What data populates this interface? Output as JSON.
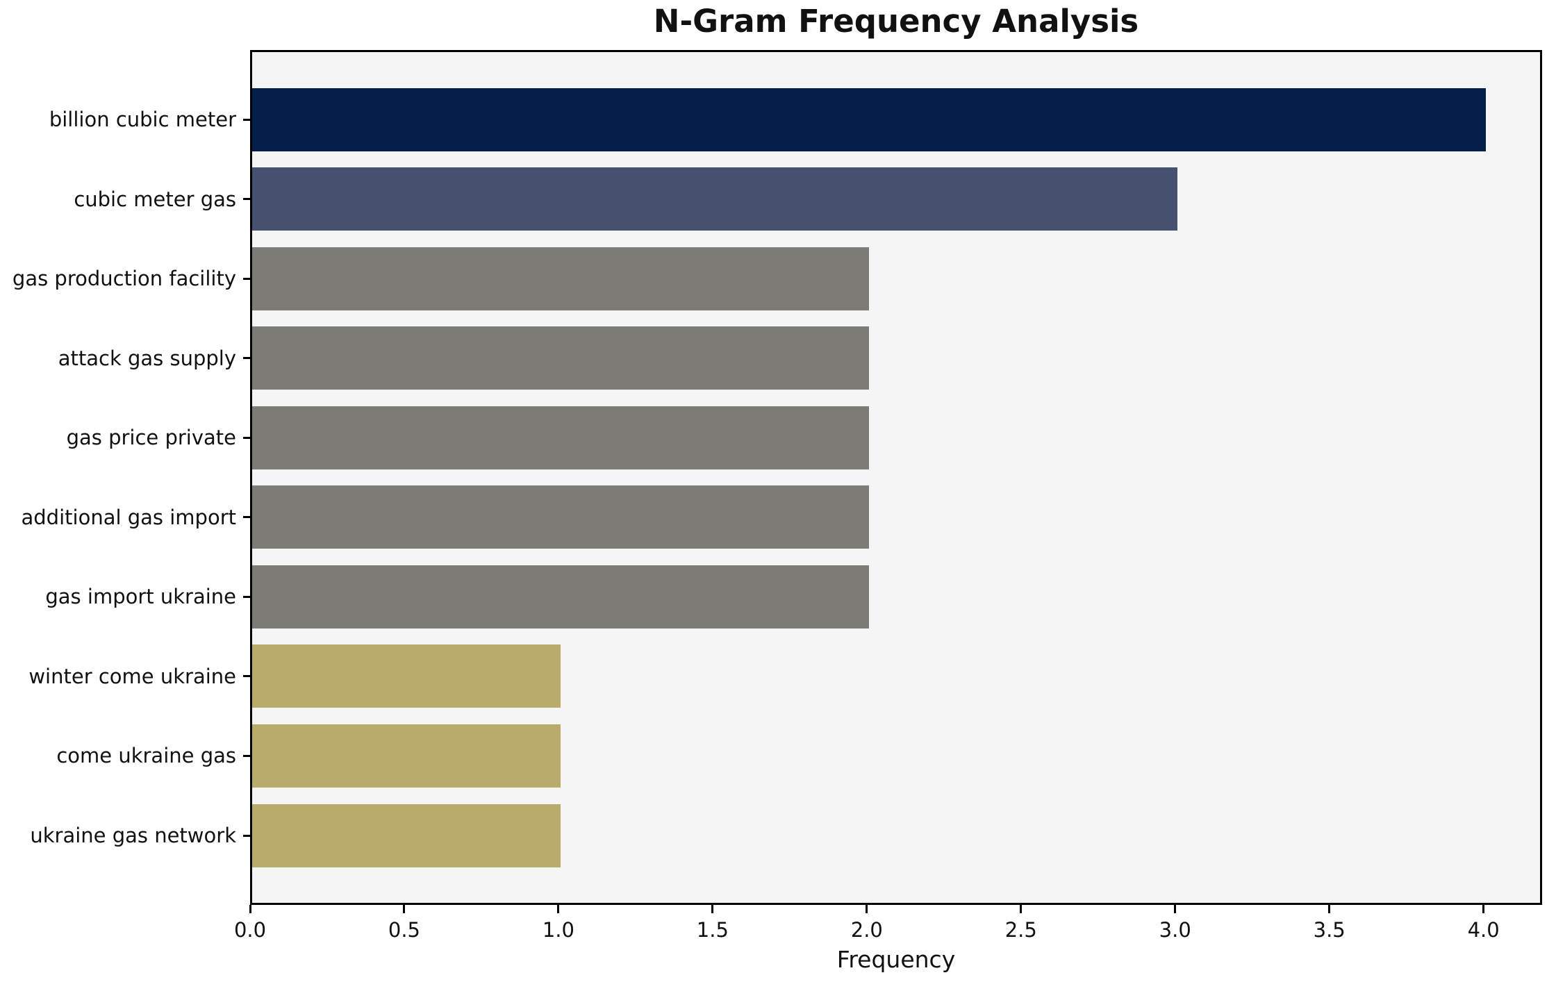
{
  "title": "N-Gram Frequency Analysis",
  "chart_data": {
    "type": "bar",
    "orientation": "horizontal",
    "title": "N-Gram Frequency Analysis",
    "xlabel": "Frequency",
    "ylabel": "",
    "categories": [
      "billion cubic meter",
      "cubic meter gas",
      "gas production facility",
      "attack gas supply",
      "gas price private",
      "additional gas import",
      "gas import ukraine",
      "winter come ukraine",
      "come ukraine gas",
      "ukraine gas network"
    ],
    "values": [
      4,
      3,
      2,
      2,
      2,
      2,
      2,
      1,
      1,
      1
    ],
    "bar_colors": [
      "#04204a",
      "#46516f",
      "#7c7b76",
      "#7c7b76",
      "#7c7b76",
      "#7c7b76",
      "#7c7b76",
      "#b9ac6a",
      "#b9ac6a",
      "#b9ac6a"
    ],
    "xlim": [
      0,
      4.19
    ],
    "xticks": [
      0.0,
      0.5,
      1.0,
      1.5,
      2.0,
      2.5,
      3.0,
      3.5,
      4.0
    ],
    "xtick_labels": [
      "0.0",
      "0.5",
      "1.0",
      "1.5",
      "2.0",
      "2.5",
      "3.0",
      "3.5",
      "4.0"
    ],
    "grid": false,
    "legend": "none",
    "plot_background": "#f5f5f5",
    "figure_background": "#ffffff",
    "spine_color": "#000000"
  }
}
